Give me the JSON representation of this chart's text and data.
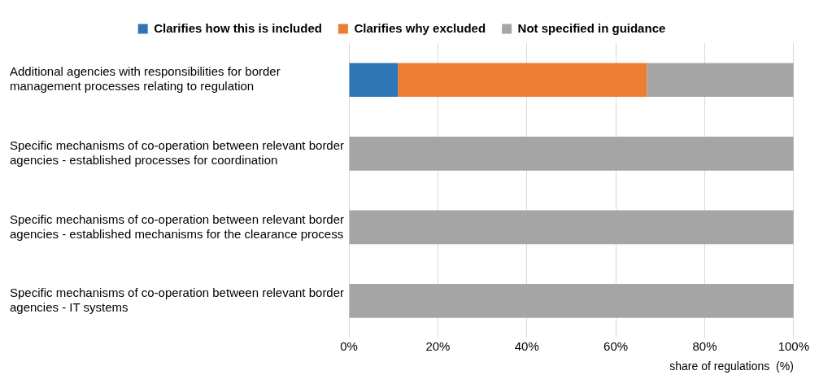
{
  "chart_data": {
    "type": "bar",
    "orientation": "horizontal",
    "stacked": true,
    "categories": [
      "Additional agencies with responsibilities for border management processes relating to regulation",
      "Specific mechanisms of co-operation between relevant border agencies - established processes for coordination",
      "Specific mechanisms of co-operation between relevant border agencies - established mechanisms for the clearance process",
      "Specific mechanisms of co-operation between relevant border agencies - IT systems"
    ],
    "series": [
      {
        "name": "Clarifies how this is included",
        "color": "#2e75b6",
        "values": [
          11,
          0,
          0,
          0
        ]
      },
      {
        "name": "Clarifies why excluded",
        "color": "#ed7d31",
        "values": [
          56,
          0,
          0,
          0
        ]
      },
      {
        "name": "Not specified in guidance",
        "color": "#a5a5a5",
        "values": [
          33,
          100,
          100,
          100
        ]
      }
    ],
    "xlim": [
      0,
      100
    ],
    "xticks": [
      {
        "value": 0,
        "label": "0%"
      },
      {
        "value": 20,
        "label": "20%"
      },
      {
        "value": 40,
        "label": "40%"
      },
      {
        "value": 60,
        "label": "60%"
      },
      {
        "value": 80,
        "label": "80%"
      },
      {
        "value": 100,
        "label": "100%"
      }
    ],
    "xlabel": "share of regulations  (%)",
    "grid": "x",
    "legend": "top"
  }
}
